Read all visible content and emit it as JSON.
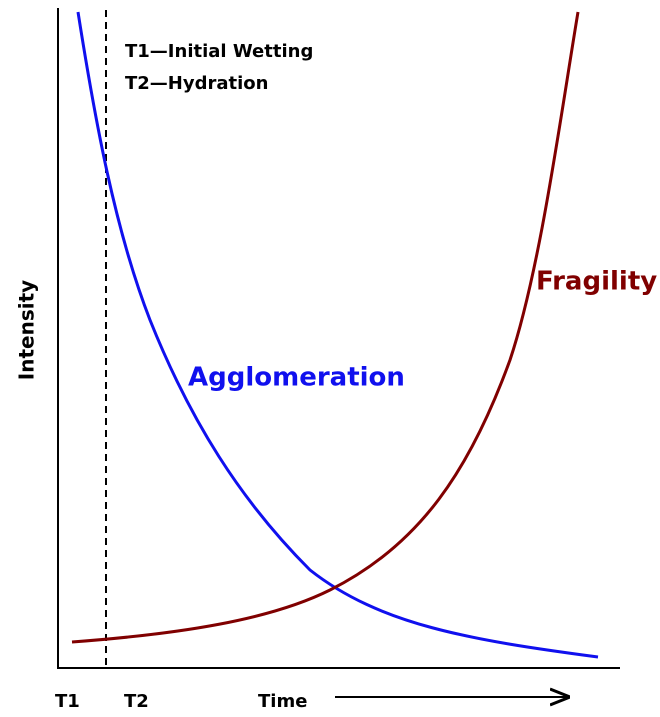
{
  "legend": {
    "t1": "T1—Initial Wetting",
    "t2": "T2—Hydration"
  },
  "y_axis_label": "Intensity",
  "x_axis_label": "Time",
  "x_markers": [
    "T1",
    "T2"
  ],
  "curves": {
    "agglomeration": "Agglomeration",
    "fragility": "Fragility"
  }
}
